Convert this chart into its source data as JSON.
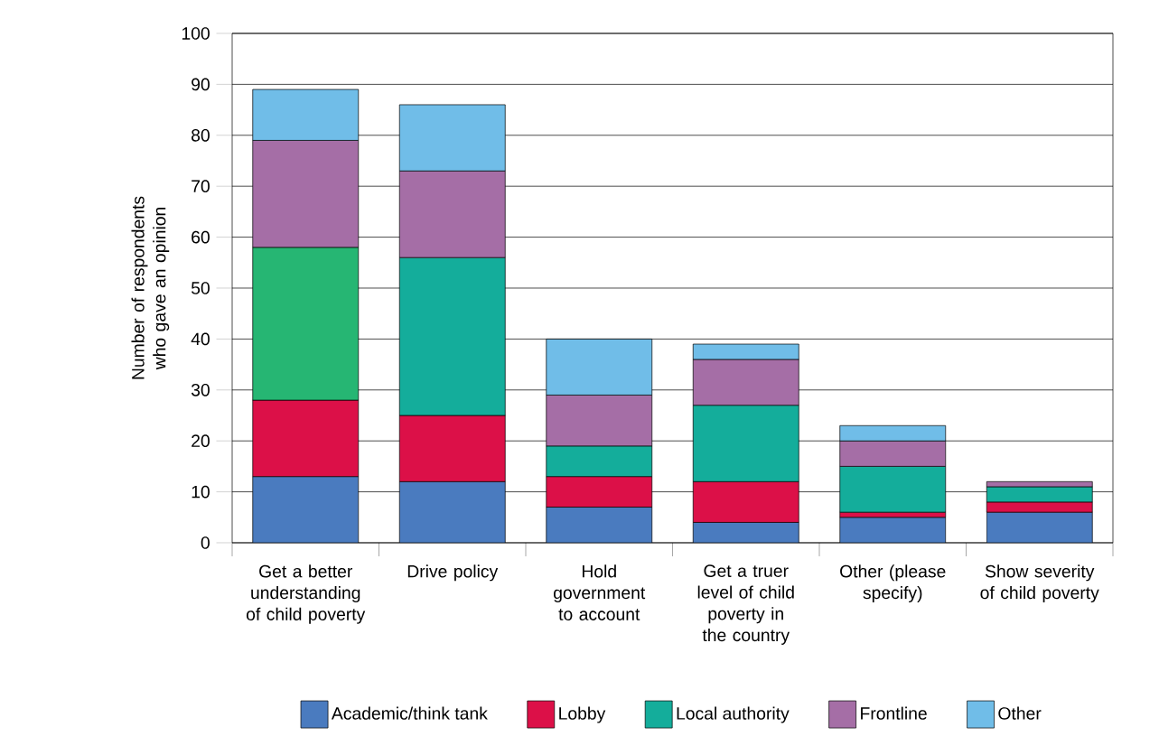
{
  "chart_data": {
    "type": "bar",
    "stacked": true,
    "ylabel": "Number of respondents who gave an opinion",
    "categories": [
      "Get a better understanding of child poverty",
      "Drive policy",
      "Hold government to account",
      "Get a truer level of child poverty in the country",
      "Other (please specify)",
      "Show severity of child poverty"
    ],
    "series": [
      {
        "name": "Academic/think tank",
        "color": "#4a7bbf",
        "values": [
          13,
          12,
          7,
          4,
          5,
          6
        ]
      },
      {
        "name": "Lobby",
        "color": "#dc1048",
        "values": [
          15,
          13,
          6,
          8,
          1,
          2
        ]
      },
      {
        "name": "Local authority",
        "color": "#14ad9b",
        "colors": [
          "#26b673",
          "#14ad9b",
          "#14ad9b",
          "#14ad9b",
          "#14ad9b",
          "#14ad9b"
        ],
        "values": [
          30,
          31,
          6,
          15,
          9,
          3
        ]
      },
      {
        "name": "Frontline",
        "color": "#a56ea6",
        "values": [
          21,
          17,
          10,
          9,
          5,
          1
        ]
      },
      {
        "name": "Other",
        "color": "#70bde8",
        "values": [
          10,
          13,
          11,
          3,
          3,
          0
        ]
      }
    ],
    "ylim": [
      0,
      100
    ],
    "yticks": [
      0,
      10,
      20,
      30,
      40,
      50,
      60,
      70,
      80,
      90,
      100
    ],
    "grid": "y",
    "legend": "bottom"
  }
}
